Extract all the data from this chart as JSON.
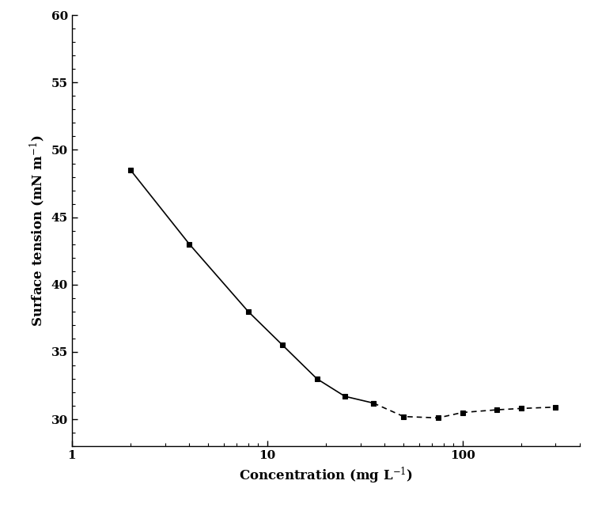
{
  "x": [
    2,
    4,
    8,
    12,
    18,
    25,
    35,
    50,
    75,
    100,
    150,
    200,
    300
  ],
  "y": [
    48.5,
    43.0,
    38.0,
    35.5,
    33.0,
    31.7,
    31.2,
    30.2,
    30.1,
    30.5,
    30.7,
    30.8,
    30.9
  ],
  "line_color": "#000000",
  "marker": "s",
  "marker_size": 4.5,
  "marker_facecolor": "#000000",
  "xlim": [
    1,
    400
  ],
  "ylim": [
    28,
    60
  ],
  "yticks": [
    30,
    35,
    40,
    45,
    50,
    55,
    60
  ],
  "background_color": "#ffffff",
  "linewidth": 1.2,
  "dashed_from_index": 6,
  "fontsize_labels": 12,
  "fontsize_ticks": 11
}
